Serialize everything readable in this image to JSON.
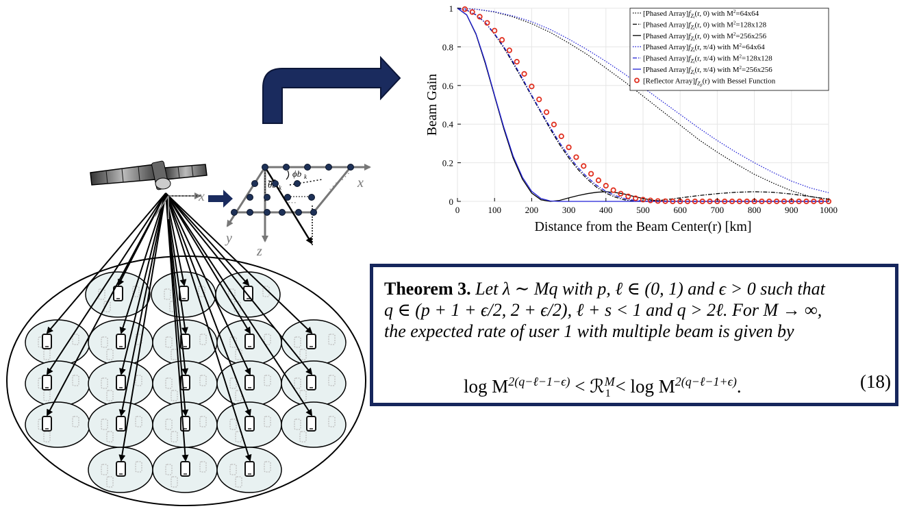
{
  "diagram": {
    "axis_labels": {
      "x_main": "x",
      "y_main": "y",
      "z_main": "z",
      "x_small": "x"
    },
    "angle_labels": {
      "phi": "ϕb",
      "phi_sub": "k",
      "theta": "θb",
      "theta_sub": "k"
    }
  },
  "chart_data": {
    "type": "line",
    "xlabel": "Distance from the Beam Center(r) [km]",
    "ylabel": "Beam Gain",
    "xlim": [
      0,
      1000
    ],
    "ylim": [
      0,
      1
    ],
    "x_ticks": [
      "0",
      "100",
      "200",
      "300",
      "400",
      "500",
      "600",
      "700",
      "800",
      "900",
      "1000"
    ],
    "y_ticks": [
      "0",
      "0.2",
      "0.4",
      "0.6",
      "0.8",
      "1"
    ],
    "legend_position": "top-right",
    "legend": [
      {
        "prefix": "[Phased Array]",
        "func": "f",
        "sub": "Z",
        "subsub": "i",
        "args": "(r, 0)",
        "suffix": " with M",
        "sup": "2",
        "size": "=64x64",
        "color": "#000000",
        "style": "dotted"
      },
      {
        "prefix": "[Phased Array]",
        "func": "f",
        "sub": "Z",
        "subsub": "i",
        "args": "(r, 0)",
        "suffix": " with M",
        "sup": "2",
        "size": "=128x128",
        "color": "#000000",
        "style": "dashdot"
      },
      {
        "prefix": "[Phased Array]",
        "func": "f",
        "sub": "Z",
        "subsub": "i",
        "args": "(r, 0)",
        "suffix": " with M",
        "sup": "2",
        "size": "=256x256",
        "color": "#000000",
        "style": "solid"
      },
      {
        "prefix": "[Phased Array]",
        "func": "f",
        "sub": "Z",
        "subsub": "i",
        "args": "(r, π/4)",
        "suffix": " with M",
        "sup": "2",
        "size": "=64x64",
        "color": "#1f1fd6",
        "style": "dotted"
      },
      {
        "prefix": "[Phased Array]",
        "func": "f",
        "sub": "Z",
        "subsub": "i",
        "args": "(r, π/4)",
        "suffix": " with M",
        "sup": "2",
        "size": "=128x128",
        "color": "#1f1fd6",
        "style": "dashdot"
      },
      {
        "prefix": "[Phased Array]",
        "func": "f",
        "sub": "Z",
        "subsub": "i",
        "args": "(r, π/4)",
        "suffix": " with M",
        "sup": "2",
        "size": "=256x256",
        "color": "#1f1fd6",
        "style": "solid"
      },
      {
        "prefix": "[Reflector Array]",
        "func": "f",
        "sub": "Z",
        "subsub": "p",
        "args": "(r)",
        "suffix": " with Bessel Function",
        "sup": "",
        "size": "",
        "color": "#e03020",
        "style": "markers"
      }
    ],
    "series": [
      {
        "name": "[Phased Array] f_Zi(r,0) with M^2=64x64",
        "color": "#000000",
        "style": "dotted",
        "x": [
          0,
          50,
          100,
          150,
          200,
          250,
          300,
          350,
          400,
          450,
          500,
          550,
          600,
          650,
          700,
          750,
          800,
          850,
          900,
          950,
          1000
        ],
        "y": [
          1.0,
          0.995,
          0.98,
          0.955,
          0.92,
          0.875,
          0.82,
          0.76,
          0.69,
          0.62,
          0.545,
          0.47,
          0.395,
          0.32,
          0.255,
          0.195,
          0.14,
          0.095,
          0.055,
          0.025,
          0.01
        ]
      },
      {
        "name": "[Phased Array] f_Zi(r,0) with M^2=128x128",
        "color": "#000000",
        "style": "dashdot",
        "x": [
          0,
          25,
          50,
          75,
          100,
          125,
          150,
          175,
          200,
          225,
          250,
          275,
          300,
          325,
          350,
          375,
          400,
          425,
          450,
          475,
          500,
          525,
          550,
          575,
          600,
          650,
          700,
          750,
          800,
          850,
          900,
          950,
          1000
        ],
        "y": [
          1.0,
          0.99,
          0.965,
          0.925,
          0.865,
          0.795,
          0.715,
          0.63,
          0.545,
          0.46,
          0.375,
          0.295,
          0.225,
          0.165,
          0.115,
          0.073,
          0.043,
          0.022,
          0.008,
          0.001,
          0.0,
          0.002,
          0.006,
          0.012,
          0.018,
          0.03,
          0.04,
          0.047,
          0.05,
          0.047,
          0.038,
          0.025,
          0.012
        ]
      },
      {
        "name": "[Phased Array] f_Zi(r,0) with M^2=256x256",
        "color": "#000000",
        "style": "solid",
        "x": [
          0,
          25,
          50,
          75,
          100,
          125,
          150,
          175,
          200,
          225,
          250,
          275,
          300,
          325,
          350,
          375,
          400,
          425,
          450,
          475,
          500,
          525,
          550,
          600,
          650,
          700,
          750,
          800,
          850,
          900,
          950,
          1000
        ],
        "y": [
          1.0,
          0.965,
          0.865,
          0.715,
          0.545,
          0.375,
          0.225,
          0.115,
          0.043,
          0.008,
          0.0,
          0.005,
          0.018,
          0.03,
          0.04,
          0.047,
          0.05,
          0.046,
          0.038,
          0.026,
          0.015,
          0.006,
          0.001,
          0.0,
          0.0,
          0.0,
          0.0,
          0.0,
          0.0,
          0.0,
          0.0,
          0.0
        ]
      },
      {
        "name": "[Phased Array] f_Zi(r,π/4) with M^2=64x64",
        "color": "#1f1fd6",
        "style": "dotted",
        "x": [
          0,
          50,
          100,
          150,
          200,
          250,
          300,
          350,
          400,
          450,
          500,
          550,
          600,
          650,
          700,
          750,
          800,
          850,
          900,
          950,
          1000
        ],
        "y": [
          1.0,
          0.995,
          0.982,
          0.96,
          0.93,
          0.89,
          0.84,
          0.785,
          0.725,
          0.66,
          0.59,
          0.52,
          0.45,
          0.38,
          0.315,
          0.255,
          0.2,
          0.15,
          0.105,
          0.07,
          0.045
        ]
      },
      {
        "name": "[Phased Array] f_Zi(r,π/4) with M^2=128x128",
        "color": "#1f1fd6",
        "style": "dashdot",
        "x": [
          0,
          25,
          50,
          75,
          100,
          125,
          150,
          175,
          200,
          225,
          250,
          275,
          300,
          325,
          350,
          375,
          400,
          425,
          450,
          475,
          500,
          525,
          550,
          575,
          600,
          650,
          700,
          750,
          800,
          850,
          900,
          950,
          1000
        ],
        "y": [
          1.0,
          0.99,
          0.966,
          0.926,
          0.868,
          0.8,
          0.722,
          0.637,
          0.55,
          0.465,
          0.383,
          0.305,
          0.235,
          0.175,
          0.125,
          0.083,
          0.052,
          0.03,
          0.015,
          0.006,
          0.002,
          0.0,
          0.0,
          0.0,
          0.0,
          0.0,
          0.0,
          0.0,
          0.0,
          0.0,
          0.0,
          0.0,
          0.0
        ]
      },
      {
        "name": "[Phased Array] f_Zi(r,π/4) with M^2=256x256",
        "color": "#1f1fd6",
        "style": "solid",
        "x": [
          0,
          25,
          50,
          75,
          100,
          125,
          150,
          175,
          200,
          225,
          250,
          275,
          300,
          325,
          350,
          400,
          450,
          500,
          600,
          700,
          800,
          900,
          1000
        ],
        "y": [
          1.0,
          0.966,
          0.868,
          0.722,
          0.55,
          0.383,
          0.235,
          0.125,
          0.052,
          0.015,
          0.002,
          0.0,
          0.0,
          0.0,
          0.0,
          0.0,
          0.0,
          0.0,
          0.0,
          0.0,
          0.0,
          0.0,
          0.0
        ]
      },
      {
        "name": "[Reflector Array] f_Zp(r) with Bessel Function",
        "color": "#e03020",
        "style": "markers",
        "x": [
          20,
          40,
          60,
          80,
          100,
          120,
          140,
          160,
          180,
          200,
          220,
          240,
          260,
          280,
          300,
          320,
          340,
          360,
          380,
          400,
          420,
          440,
          460,
          480,
          500,
          520,
          540,
          560,
          580,
          600,
          620,
          640,
          660,
          680,
          700,
          720,
          740,
          760,
          780,
          800,
          820,
          840,
          860,
          880,
          900,
          920,
          940,
          960,
          980,
          1000
        ],
        "y": [
          0.995,
          0.98,
          0.956,
          0.924,
          0.884,
          0.836,
          0.782,
          0.723,
          0.66,
          0.595,
          0.528,
          0.462,
          0.398,
          0.337,
          0.28,
          0.229,
          0.183,
          0.143,
          0.109,
          0.081,
          0.058,
          0.04,
          0.026,
          0.016,
          0.009,
          0.005,
          0.002,
          0.001,
          0.0,
          0.0,
          0.0,
          0.0,
          0.0,
          0.0,
          0.0,
          0.0,
          0.0,
          0.0,
          0.0,
          0.0,
          0.0,
          0.0,
          0.0,
          0.0,
          0.0,
          0.0,
          0.0,
          0.0,
          0.0,
          0.0
        ]
      }
    ]
  },
  "theorem": {
    "label": "Theorem 3.",
    "line1": "Let λ ∼ Mq with p, ℓ ∈ (0, 1) and ϵ > 0 such that",
    "line2": "q ∈ (p + 1 + ϵ/2, 2 + ϵ/2), ℓ + s < 1 and q > 2ℓ. For M → ∞,",
    "line3": "the expected rate of user 1 with multiple beam is given by",
    "eq_left": "log M",
    "eq_left_sup": "2(q−ℓ−1−ϵ)",
    "eq_mid": " < ℛ",
    "eq_mid_sup": "M",
    "eq_mid_sub": "1",
    "eq_right": " < log M",
    "eq_right_sup": "2(q−ℓ−1+ϵ)",
    "eq_end": ".",
    "eq_number": "(18)"
  }
}
